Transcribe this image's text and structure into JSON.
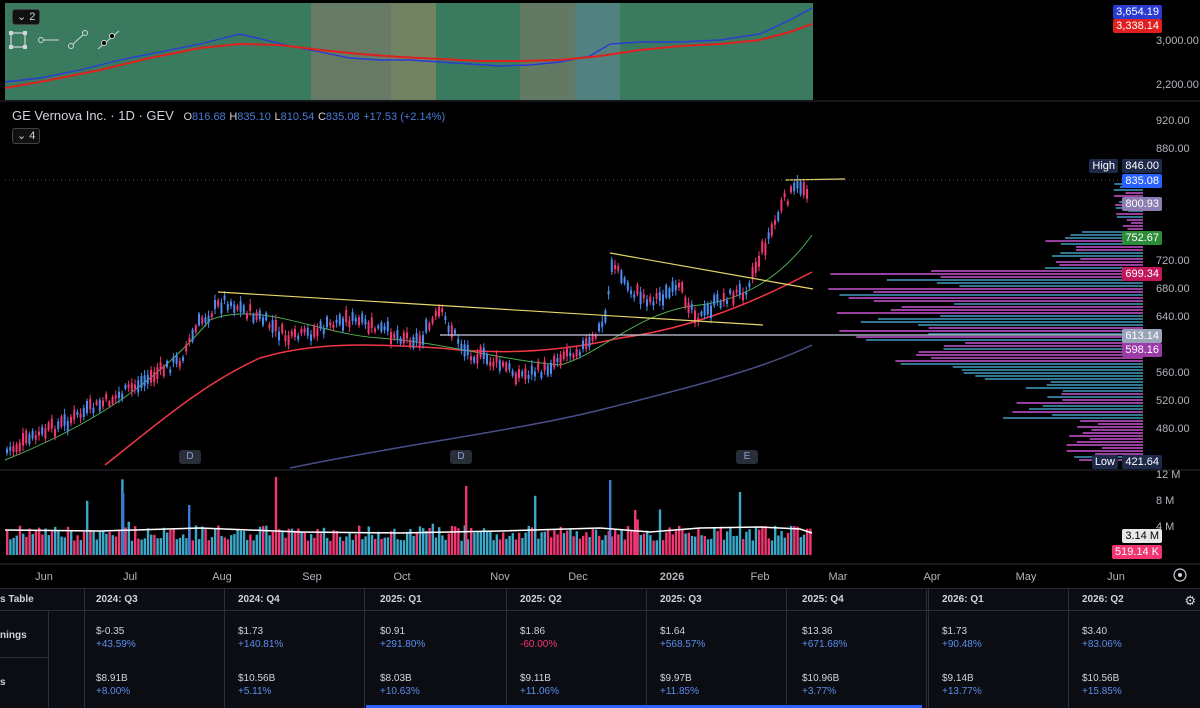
{
  "symbol": {
    "title": "GE Vernova Inc. · 1D · GEV",
    "open_key": "O",
    "open": "816.68",
    "high_key": "H",
    "high": "835.10",
    "low_key": "L",
    "low": "810.54",
    "close_key": "C",
    "close": "835.08",
    "change": "+17.53 (+2.14%)"
  },
  "panes": {
    "top_collapse": "2",
    "indicator_collapse": "4"
  },
  "top_pane": {
    "axis_labels": [
      "3,000.00",
      "2,200.00"
    ],
    "tags": [
      {
        "text": "3,654.19",
        "color": "#2a3bd4"
      },
      {
        "text": "3,338.14",
        "color": "#e0201e"
      }
    ]
  },
  "price_axis": [
    "920.00",
    "880.00",
    "720.00",
    "680.00",
    "640.00",
    "560.00",
    "520.00",
    "480.00"
  ],
  "price_tags": [
    {
      "text": "High",
      "value": "846.00",
      "color": "#1e2a4a"
    },
    {
      "text": "",
      "value": "835.08",
      "color": "#2962ff"
    },
    {
      "text": "",
      "value": "800.93",
      "color": "#8c7db0"
    },
    {
      "text": "",
      "value": "752.67",
      "color": "#2e8b3a"
    },
    {
      "text": "",
      "value": "699.34",
      "color": "#c2185b"
    },
    {
      "text": "",
      "value": "613.14",
      "color": "#9aa4b8"
    },
    {
      "text": "",
      "value": "598.16",
      "color": "#9a3ba8"
    },
    {
      "text": "Low",
      "value": "421.64",
      "color": "#1e2a4a"
    }
  ],
  "events": [
    "D",
    "D",
    "E"
  ],
  "volume": {
    "axis_labels": [
      "12 M",
      "8 M",
      "4 M"
    ],
    "tags": [
      {
        "text": "3.14 M",
        "color": "#e8e8e8",
        "textcolor": "#000"
      },
      {
        "text": "519.14 K",
        "color": "#f23672",
        "textcolor": "#fff"
      }
    ]
  },
  "time_axis": [
    "Jun",
    "Jul",
    "Aug",
    "Sep",
    "Oct",
    "Nov",
    "Dec",
    "2026",
    "Feb",
    "Mar",
    "Apr",
    "May",
    "Jun"
  ],
  "table": {
    "title_fragment": "s Table",
    "periods": [
      "2024: Q3",
      "2024: Q4",
      "2025: Q1",
      "2025: Q2",
      "2025: Q3",
      "2025: Q4",
      "2026: Q1",
      "2026: Q2"
    ],
    "rows": [
      {
        "label": "nings",
        "cells": [
          {
            "a": "$-0.35",
            "b": "+43.59%",
            "neg": false
          },
          {
            "a": "$1.73",
            "b": "+140.81%",
            "neg": false
          },
          {
            "a": "$0.91",
            "b": "+291.80%",
            "neg": false
          },
          {
            "a": "$1.86",
            "b": "-60.00%",
            "neg": true
          },
          {
            "a": "$1.64",
            "b": "+568.57%",
            "neg": false
          },
          {
            "a": "$13.36",
            "b": "+671.68%",
            "neg": false
          },
          {
            "a": "$1.73",
            "b": "+90.48%",
            "neg": false
          },
          {
            "a": "$3.40",
            "b": "+83.06%",
            "neg": false
          }
        ]
      },
      {
        "label": "s",
        "cells": [
          {
            "a": "$8.91B",
            "b": "+8.00%",
            "neg": false
          },
          {
            "a": "$10.56B",
            "b": "+5.11%",
            "neg": false
          },
          {
            "a": "$8.03B",
            "b": "+10.63%",
            "neg": false
          },
          {
            "a": "$9.11B",
            "b": "+11.06%",
            "neg": false
          },
          {
            "a": "$9.97B",
            "b": "+11.85%",
            "neg": false
          },
          {
            "a": "$10.96B",
            "b": "+3.77%",
            "neg": false
          },
          {
            "a": "$9.14B",
            "b": "+13.77%",
            "neg": false
          },
          {
            "a": "$10.56B",
            "b": "+15.85%",
            "neg": false
          }
        ]
      }
    ]
  },
  "colors": {
    "up": "#4a8cf0",
    "down": "#f23672",
    "trendline": "#e8d66a",
    "ma_fast": "#4caf50",
    "ma_mid": "#f23645",
    "ma_slow": "#4a4f8a",
    "profile_pink": "#b04ab8",
    "profile_teal": "#3a8aa8"
  },
  "icons": [
    "rectangle-select-icon",
    "horizontal-ray-icon",
    "trend-line-icon",
    "extended-line-icon",
    "settings-gear-icon",
    "time-settings-icon"
  ]
}
